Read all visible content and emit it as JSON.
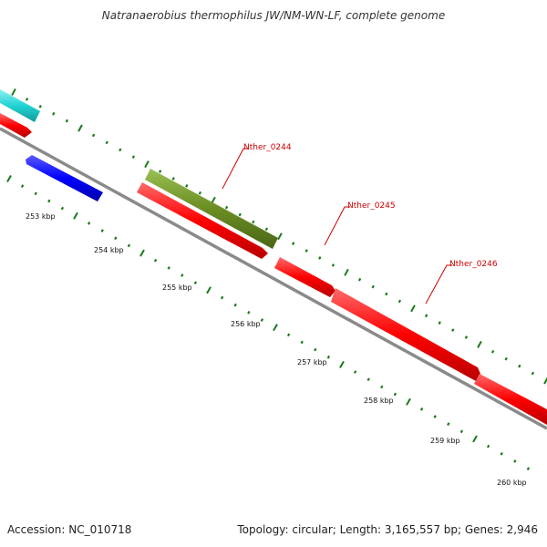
{
  "title": "Natranaerobius thermophilus JW/NM-WN-LF, complete genome",
  "footer": {
    "accession": "Accession: NC_010718",
    "summary": "Topology: circular; Length: 3,165,557 bp; Genes: 2,946"
  },
  "colors": {
    "backbone": "#8a8a8a",
    "tick": "#1a7a1a",
    "forward_gene": "#ff0000",
    "reverse_gene": "#0000ff",
    "cyan_feature": "#22d3d3",
    "olive_feature": "#6b8e23",
    "label_line": "#cc0000"
  },
  "scale_labels": [
    "253 kbp",
    "254 kbp",
    "255 kbp",
    "256 kbp",
    "257 kbp",
    "258 kbp",
    "259 kbp",
    "260 kbp"
  ],
  "gene_labels": [
    "Nther_0244",
    "Nther_0245",
    "Nther_0246"
  ]
}
